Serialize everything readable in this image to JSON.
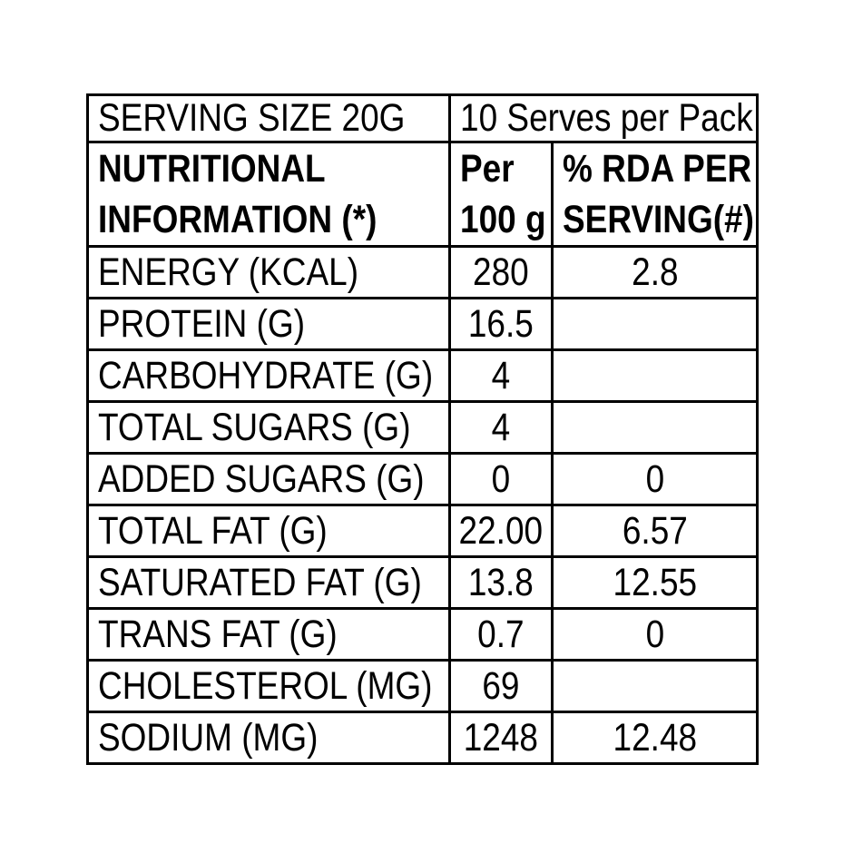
{
  "page": {
    "background_color": "#ffffff",
    "text_color": "#000000",
    "border_color": "#000000"
  },
  "table": {
    "serving_row": {
      "serving_size": "SERVING SIZE 20G",
      "serves_per_pack": "10 Serves per Pack"
    },
    "header": {
      "info_line1": "NUTRITIONAL",
      "info_line2": "INFORMATION (*)",
      "per_line1": "Per",
      "per_line2": "100 g",
      "rda_line1": "% RDA PER",
      "rda_line2": "SERVING(#)"
    },
    "rows": [
      {
        "label": "ENERGY (KCAL)",
        "per_100g": "280",
        "rda_per_serving": "2.8"
      },
      {
        "label": "PROTEIN (G)",
        "per_100g": "16.5",
        "rda_per_serving": ""
      },
      {
        "label": "CARBOHYDRATE (G)",
        "per_100g": "4",
        "rda_per_serving": ""
      },
      {
        "label": "TOTAL SUGARS (G)",
        "per_100g": "4",
        "rda_per_serving": ""
      },
      {
        "label": "ADDED SUGARS (G)",
        "per_100g": "0",
        "rda_per_serving": "0"
      },
      {
        "label": "TOTAL FAT (G)",
        "per_100g": "22.00",
        "rda_per_serving": "6.57"
      },
      {
        "label": "SATURATED FAT (G)",
        "per_100g": "13.8",
        "rda_per_serving": "12.55"
      },
      {
        "label": "TRANS FAT (G)",
        "per_100g": "0.7",
        "rda_per_serving": "0"
      },
      {
        "label": "CHOLESTEROL (MG)",
        "per_100g": "69",
        "rda_per_serving": ""
      },
      {
        "label": "SODIUM (MG)",
        "per_100g": "1248",
        "rda_per_serving": "12.48"
      }
    ]
  }
}
